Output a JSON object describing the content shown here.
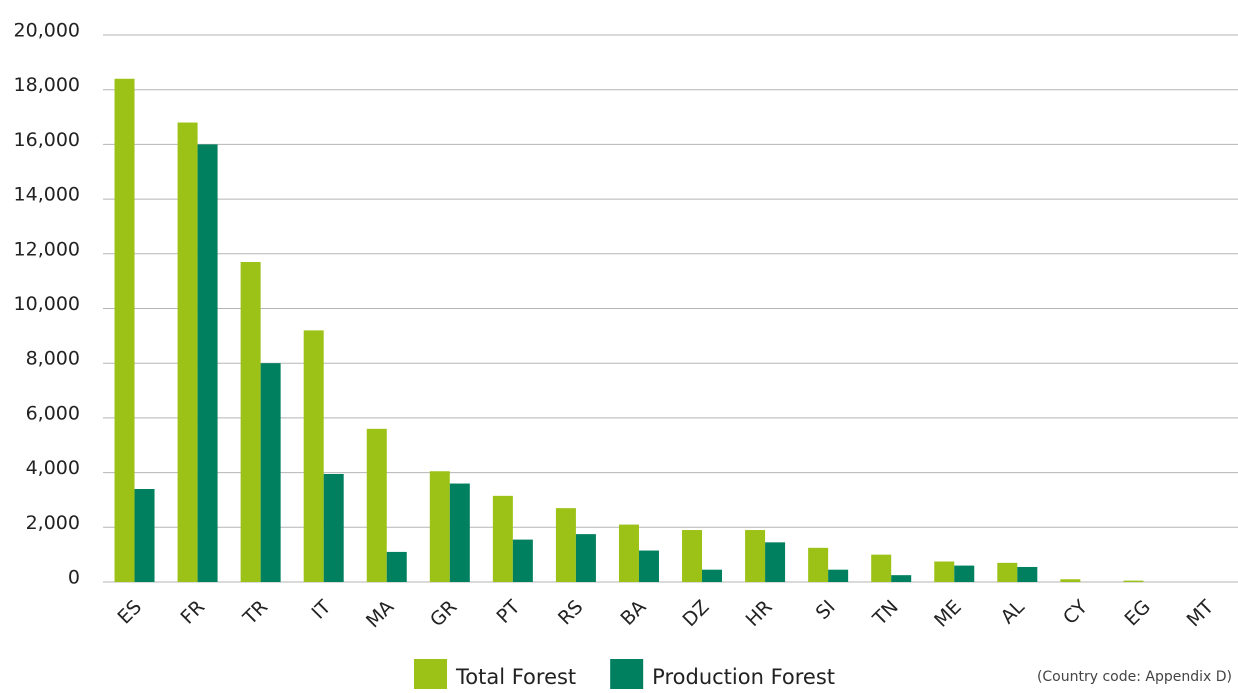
{
  "chart_data": {
    "type": "bar",
    "categories": [
      "ES",
      "FR",
      "TR",
      "IT",
      "MA",
      "GR",
      "PT",
      "RS",
      "BA",
      "DZ",
      "HR",
      "SI",
      "TN",
      "ME",
      "AL",
      "CY",
      "EG",
      "MT"
    ],
    "series": [
      {
        "name": "Total Forest",
        "color": "#9dc217",
        "values": [
          18400,
          16800,
          11700,
          9200,
          5600,
          4050,
          3150,
          2700,
          2100,
          1900,
          1900,
          1250,
          1000,
          750,
          700,
          100,
          50,
          0
        ]
      },
      {
        "name": "Production Forest",
        "color": "#00805e",
        "values": [
          3400,
          16000,
          8000,
          3950,
          1100,
          3600,
          1550,
          1750,
          1150,
          450,
          1450,
          450,
          250,
          600,
          550,
          0,
          0,
          0
        ]
      }
    ],
    "ylim": [
      0,
      20000
    ],
    "yticks": [
      0,
      {
        "value": 2000,
        "label": "2,000"
      },
      {
        "value": 4000,
        "label": "4,000"
      },
      {
        "value": 6000,
        "label": "6,000"
      },
      {
        "value": 8000,
        "label": "8,000"
      },
      {
        "value": 10000,
        "label": "10,000"
      },
      {
        "value": 12000,
        "label": "12,000"
      },
      {
        "value": 14000,
        "label": "14,000"
      },
      {
        "value": 16000,
        "label": "16,000"
      },
      {
        "value": 18000,
        "label": "18,000"
      },
      {
        "value": 20000,
        "label": "20,000"
      }
    ],
    "grid": true,
    "note": "(Country code: Appendix D)"
  }
}
